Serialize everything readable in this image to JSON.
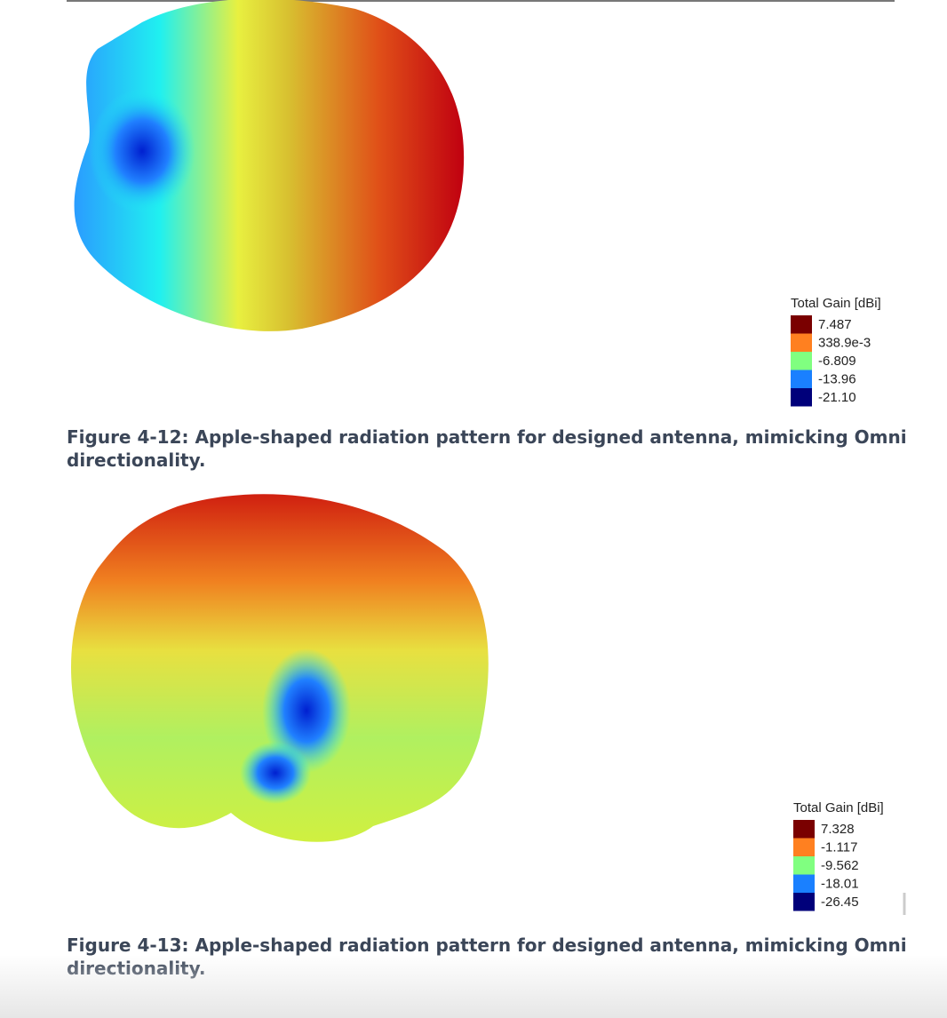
{
  "figures": [
    {
      "legend": {
        "title": "Total Gain [dBi]",
        "entries": [
          {
            "label": "7.487",
            "color": "#7a0000"
          },
          {
            "label": "338.9e-3",
            "color": "#ff8020"
          },
          {
            "label": "-6.809",
            "color": "#80ff80"
          },
          {
            "label": "-13.96",
            "color": "#1a80ff"
          },
          {
            "label": "-21.10",
            "color": "#00007a"
          }
        ]
      },
      "caption": [
        "Figure 4-12: Apple-shaped radiation pattern for designed antenna, mimicking Omni",
        "directionality."
      ]
    },
    {
      "legend": {
        "title": "Total Gain [dBi]",
        "entries": [
          {
            "label": "7.328",
            "color": "#7a0000"
          },
          {
            "label": "-1.117",
            "color": "#ff8020"
          },
          {
            "label": "-9.562",
            "color": "#80ff80"
          },
          {
            "label": "-18.01",
            "color": "#1a80ff"
          },
          {
            "label": "-26.45",
            "color": "#00007a"
          }
        ]
      },
      "caption": [
        "Figure 4-13: Apple-shaped radiation pattern for designed antenna, mimicking Omni",
        "directionality."
      ]
    }
  ]
}
